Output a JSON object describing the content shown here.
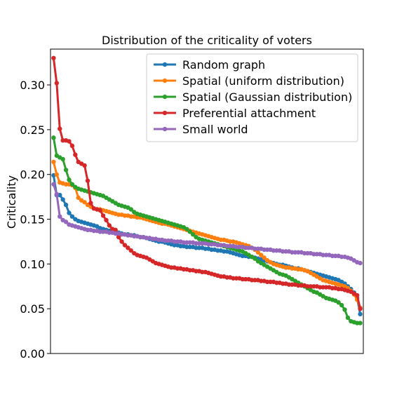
{
  "chart_data": {
    "type": "line",
    "title": "Distribution of the criticality of voters",
    "xlabel": "",
    "ylabel": "Criticality",
    "ylim": [
      0,
      0.34
    ],
    "yticks": [
      0.0,
      0.05,
      0.1,
      0.15,
      0.2,
      0.25,
      0.3
    ],
    "yticklabels": [
      "0.00",
      "0.05",
      "0.10",
      "0.15",
      "0.20",
      "0.25",
      "0.30"
    ],
    "xlim": [
      -1,
      100
    ],
    "xticks_visible": false,
    "grid": false,
    "legend_position": "top-right",
    "series": [
      {
        "name": "Random graph",
        "color": "#1f77b4",
        "y": [
          0.199,
          0.177,
          0.177,
          0.172,
          0.166,
          0.157,
          0.153,
          0.15,
          0.148,
          0.147,
          0.146,
          0.145,
          0.144,
          0.143,
          0.142,
          0.14,
          0.139,
          0.138,
          0.137,
          0.136,
          0.135,
          0.135,
          0.134,
          0.133,
          0.133,
          0.132,
          0.132,
          0.131,
          0.13,
          0.13,
          0.129,
          0.128,
          0.127,
          0.126,
          0.125,
          0.125,
          0.124,
          0.123,
          0.122,
          0.121,
          0.121,
          0.12,
          0.12,
          0.119,
          0.119,
          0.119,
          0.118,
          0.118,
          0.118,
          0.117,
          0.117,
          0.116,
          0.116,
          0.115,
          0.115,
          0.114,
          0.114,
          0.113,
          0.112,
          0.111,
          0.11,
          0.109,
          0.109,
          0.108,
          0.108,
          0.107,
          0.106,
          0.105,
          0.104,
          0.103,
          0.102,
          0.101,
          0.1,
          0.099,
          0.099,
          0.098,
          0.097,
          0.096,
          0.095,
          0.095,
          0.094,
          0.093,
          0.092,
          0.091,
          0.09,
          0.089,
          0.088,
          0.087,
          0.086,
          0.085,
          0.084,
          0.083,
          0.082,
          0.08,
          0.078,
          0.075,
          0.072,
          0.068,
          0.062,
          0.044
        ]
      },
      {
        "name": "Spatial (uniform distribution)",
        "color": "#ff7f0e",
        "y": [
          0.214,
          0.2,
          0.191,
          0.19,
          0.189,
          0.189,
          0.188,
          0.185,
          0.174,
          0.171,
          0.169,
          0.166,
          0.164,
          0.162,
          0.161,
          0.161,
          0.16,
          0.159,
          0.158,
          0.157,
          0.156,
          0.155,
          0.155,
          0.154,
          0.154,
          0.153,
          0.153,
          0.152,
          0.152,
          0.151,
          0.15,
          0.149,
          0.148,
          0.147,
          0.146,
          0.145,
          0.145,
          0.144,
          0.143,
          0.142,
          0.141,
          0.14,
          0.139,
          0.138,
          0.137,
          0.136,
          0.135,
          0.134,
          0.133,
          0.132,
          0.131,
          0.13,
          0.129,
          0.128,
          0.127,
          0.127,
          0.126,
          0.125,
          0.125,
          0.124,
          0.123,
          0.122,
          0.121,
          0.12,
          0.118,
          0.116,
          0.113,
          0.11,
          0.107,
          0.104,
          0.102,
          0.1,
          0.099,
          0.098,
          0.097,
          0.096,
          0.096,
          0.095,
          0.095,
          0.094,
          0.094,
          0.093,
          0.092,
          0.09,
          0.088,
          0.086,
          0.084,
          0.082,
          0.081,
          0.08,
          0.079,
          0.078,
          0.077,
          0.076,
          0.075,
          0.073,
          0.07,
          0.066,
          0.06,
          0.051
        ]
      },
      {
        "name": "Spatial (Gaussian distribution)",
        "color": "#2ca02c",
        "y": [
          0.241,
          0.221,
          0.219,
          0.217,
          0.205,
          0.194,
          0.189,
          0.186,
          0.184,
          0.183,
          0.182,
          0.181,
          0.18,
          0.179,
          0.178,
          0.177,
          0.176,
          0.174,
          0.172,
          0.17,
          0.168,
          0.166,
          0.165,
          0.164,
          0.163,
          0.161,
          0.158,
          0.156,
          0.155,
          0.154,
          0.153,
          0.152,
          0.151,
          0.15,
          0.149,
          0.148,
          0.147,
          0.146,
          0.145,
          0.144,
          0.143,
          0.142,
          0.141,
          0.139,
          0.136,
          0.133,
          0.13,
          0.128,
          0.127,
          0.126,
          0.125,
          0.124,
          0.123,
          0.122,
          0.121,
          0.12,
          0.119,
          0.118,
          0.117,
          0.116,
          0.115,
          0.114,
          0.112,
          0.11,
          0.108,
          0.106,
          0.103,
          0.101,
          0.099,
          0.097,
          0.095,
          0.093,
          0.091,
          0.089,
          0.088,
          0.087,
          0.085,
          0.083,
          0.081,
          0.079,
          0.077,
          0.075,
          0.073,
          0.071,
          0.069,
          0.068,
          0.066,
          0.064,
          0.062,
          0.061,
          0.06,
          0.059,
          0.057,
          0.054,
          0.049,
          0.04,
          0.036,
          0.035,
          0.034,
          0.034
        ]
      },
      {
        "name": "Preferential attachment",
        "color": "#d62728",
        "y": [
          0.33,
          0.302,
          0.251,
          0.238,
          0.238,
          0.237,
          0.232,
          0.222,
          0.214,
          0.212,
          0.21,
          0.193,
          0.168,
          0.162,
          0.161,
          0.16,
          0.154,
          0.149,
          0.143,
          0.139,
          0.138,
          0.13,
          0.125,
          0.121,
          0.118,
          0.115,
          0.112,
          0.11,
          0.109,
          0.108,
          0.107,
          0.105,
          0.103,
          0.101,
          0.1,
          0.099,
          0.098,
          0.097,
          0.096,
          0.096,
          0.095,
          0.095,
          0.094,
          0.094,
          0.093,
          0.093,
          0.092,
          0.092,
          0.091,
          0.091,
          0.09,
          0.089,
          0.088,
          0.087,
          0.086,
          0.086,
          0.085,
          0.085,
          0.084,
          0.084,
          0.084,
          0.083,
          0.083,
          0.083,
          0.082,
          0.082,
          0.082,
          0.081,
          0.081,
          0.08,
          0.08,
          0.08,
          0.079,
          0.079,
          0.078,
          0.078,
          0.077,
          0.077,
          0.077,
          0.076,
          0.076,
          0.076,
          0.075,
          0.075,
          0.075,
          0.075,
          0.074,
          0.074,
          0.074,
          0.074,
          0.073,
          0.073,
          0.072,
          0.072,
          0.071,
          0.07,
          0.069,
          0.067,
          0.065,
          0.05
        ]
      },
      {
        "name": "Small world",
        "color": "#9467bd",
        "y": [
          0.189,
          0.178,
          0.153,
          0.149,
          0.147,
          0.144,
          0.143,
          0.142,
          0.141,
          0.14,
          0.139,
          0.138,
          0.138,
          0.137,
          0.137,
          0.136,
          0.136,
          0.136,
          0.135,
          0.135,
          0.134,
          0.134,
          0.133,
          0.133,
          0.132,
          0.132,
          0.131,
          0.131,
          0.13,
          0.13,
          0.129,
          0.129,
          0.128,
          0.128,
          0.127,
          0.127,
          0.126,
          0.126,
          0.126,
          0.125,
          0.125,
          0.125,
          0.124,
          0.124,
          0.124,
          0.124,
          0.123,
          0.123,
          0.123,
          0.123,
          0.122,
          0.122,
          0.122,
          0.121,
          0.121,
          0.121,
          0.12,
          0.12,
          0.12,
          0.119,
          0.119,
          0.119,
          0.118,
          0.118,
          0.118,
          0.117,
          0.117,
          0.117,
          0.116,
          0.116,
          0.116,
          0.115,
          0.115,
          0.115,
          0.114,
          0.114,
          0.114,
          0.113,
          0.113,
          0.113,
          0.113,
          0.112,
          0.112,
          0.112,
          0.111,
          0.111,
          0.111,
          0.11,
          0.11,
          0.11,
          0.109,
          0.109,
          0.109,
          0.108,
          0.108,
          0.107,
          0.106,
          0.104,
          0.102,
          0.101
        ]
      }
    ]
  }
}
